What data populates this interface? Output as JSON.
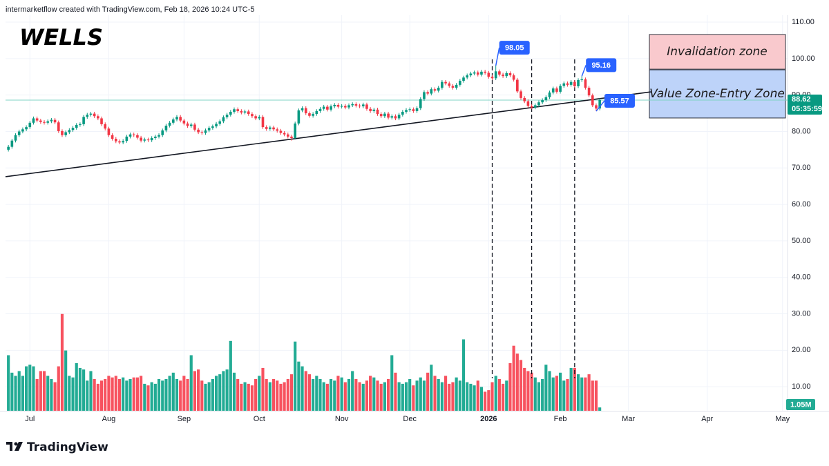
{
  "chart_data": {
    "type": "candlestick",
    "title": "WELLS",
    "watermark": "intermarketflow created with TradingView.com, Feb 18, 2026 10:24 UTC-5",
    "brand": "TradingView",
    "countdown": "05:35:59",
    "up_color": "#089981",
    "down_color": "#f23645",
    "grid": true,
    "xlim": [
      -0.8,
      217.4
    ],
    "xticks": [
      {
        "value": 6,
        "label": "Jul"
      },
      {
        "value": 28,
        "label": "Aug"
      },
      {
        "value": 49,
        "label": "Sep"
      },
      {
        "value": 70,
        "label": "Oct"
      },
      {
        "value": 93,
        "label": "Nov"
      },
      {
        "value": 112,
        "label": "Dec"
      },
      {
        "value": 134,
        "label": "2026"
      },
      {
        "value": 154,
        "label": "Feb"
      },
      {
        "value": 173,
        "label": "Mar"
      },
      {
        "value": 195,
        "label": "Apr"
      },
      {
        "value": 216,
        "label": "May"
      }
    ],
    "ylim": [
      3.4,
      111.9
    ],
    "yticks": [
      {
        "value": 10,
        "label": "10.00"
      },
      {
        "value": 20,
        "label": "20.00"
      },
      {
        "value": 30,
        "label": "30.00"
      },
      {
        "value": 40,
        "label": "40.00"
      },
      {
        "value": 50,
        "label": "50.00"
      },
      {
        "value": 60,
        "label": "60.00"
      },
      {
        "value": 70,
        "label": "70.00"
      },
      {
        "value": 80,
        "label": "80.00"
      },
      {
        "value": 90,
        "label": "90.00"
      },
      {
        "value": 100,
        "label": "100.00"
      },
      {
        "value": 110,
        "label": "110.00"
      }
    ],
    "open": [
      75.0,
      75.8,
      77.5,
      79.0,
      80.0,
      80.6,
      81.2,
      82.4,
      83.6,
      83.0,
      82.6,
      82.4,
      82.8,
      83.2,
      82.5,
      80.1,
      79.0,
      79.8,
      80.4,
      81.0,
      81.8,
      82.0,
      84.0,
      84.6,
      84.9,
      84.2,
      83.6,
      82.0,
      80.8,
      79.0,
      78.0,
      77.3,
      77.0,
      77.4,
      78.6,
      79.2,
      79.0,
      78.3,
      77.5,
      77.8,
      77.6,
      78.2,
      78.6,
      79.0,
      80.3,
      81.6,
      82.4,
      83.3,
      84.0,
      83.0,
      82.2,
      81.5,
      81.9,
      80.5,
      79.8,
      79.6,
      80.3,
      81.0,
      81.4,
      82.1,
      82.8,
      83.9,
      84.6,
      85.4,
      86.1,
      85.6,
      85.2,
      85.5,
      84.8,
      84.2,
      83.6,
      84.0,
      81.2,
      80.7,
      81.1,
      80.6,
      80.2,
      79.6,
      79.2,
      78.6,
      78.2,
      82.2,
      85.8,
      86.4,
      85.0,
      84.3,
      84.8,
      85.6,
      86.2,
      86.8,
      86.0,
      86.9,
      87.3,
      86.8,
      87.0,
      86.6,
      87.2,
      87.5,
      87.1,
      86.9,
      87.4,
      86.2,
      85.6,
      86.0,
      84.8,
      84.2,
      84.9,
      83.8,
      84.2,
      83.6,
      84.6,
      85.4,
      85.9,
      86.1,
      85.6,
      86.4,
      88.9,
      90.8,
      90.4,
      91.6,
      91.2,
      92.0,
      93.6,
      93.2,
      92.5,
      92.0,
      92.8,
      93.9,
      94.8,
      95.4,
      95.9,
      96.2,
      95.6,
      96.4,
      96.1,
      95.0,
      94.6,
      96.5,
      95.6,
      95.2,
      96.0,
      95.4,
      94.2,
      91.0,
      89.2,
      88.3,
      87.0,
      86.6,
      87.2,
      88.0,
      88.6,
      89.4,
      90.7,
      91.8,
      90.9,
      92.5,
      93.2,
      92.8,
      93.6,
      92.4,
      94.1,
      94.3,
      92.0,
      89.9,
      87.2,
      86.3
    ],
    "high": [
      76.3,
      78.0,
      79.5,
      80.5,
      81.1,
      81.7,
      82.9,
      84.1,
      84.1,
      83.5,
      83.1,
      83.3,
      83.7,
      83.7,
      83.0,
      80.6,
      80.3,
      80.9,
      81.5,
      82.3,
      82.5,
      84.5,
      85.1,
      85.4,
      85.4,
      84.7,
      84.1,
      82.5,
      81.3,
      79.5,
      78.5,
      77.8,
      77.9,
      79.1,
      79.7,
      79.7,
      79.5,
      78.8,
      78.3,
      78.3,
      78.7,
      79.1,
      79.5,
      80.8,
      82.1,
      82.9,
      83.8,
      84.5,
      84.5,
      83.5,
      82.7,
      82.4,
      82.4,
      81.0,
      80.3,
      80.8,
      81.5,
      81.9,
      82.6,
      83.3,
      84.4,
      85.1,
      85.9,
      86.6,
      86.6,
      86.1,
      86.0,
      86.0,
      85.3,
      84.7,
      84.5,
      84.5,
      81.7,
      81.6,
      81.6,
      81.1,
      80.7,
      80.1,
      79.7,
      79.1,
      82.7,
      86.3,
      86.9,
      86.9,
      85.5,
      85.3,
      86.1,
      86.7,
      87.3,
      87.3,
      87.4,
      87.8,
      87.8,
      87.5,
      87.5,
      87.7,
      88.0,
      88.0,
      87.6,
      87.9,
      87.9,
      86.7,
      86.5,
      86.5,
      85.3,
      85.4,
      85.4,
      84.7,
      84.7,
      85.1,
      85.9,
      86.4,
      86.6,
      86.6,
      86.9,
      89.4,
      91.3,
      91.3,
      92.1,
      92.1,
      92.5,
      94.1,
      94.1,
      93.7,
      93.0,
      93.3,
      94.4,
      95.3,
      95.9,
      96.4,
      96.7,
      96.7,
      96.9,
      96.9,
      96.6,
      95.5,
      98.05,
      97.0,
      96.1,
      96.5,
      96.5,
      95.9,
      94.7,
      91.5,
      89.7,
      88.8,
      87.5,
      87.7,
      88.5,
      89.1,
      89.9,
      91.2,
      92.3,
      92.3,
      93.0,
      93.7,
      93.7,
      94.1,
      94.1,
      94.6,
      95.16,
      94.8,
      92.5,
      90.4,
      87.7,
      89.1
    ],
    "low": [
      74.5,
      75.3,
      77.0,
      78.5,
      79.5,
      80.1,
      80.7,
      81.9,
      82.5,
      82.1,
      81.9,
      81.9,
      82.3,
      82.0,
      79.6,
      78.5,
      78.5,
      79.3,
      79.9,
      80.5,
      81.3,
      81.5,
      83.5,
      84.1,
      83.7,
      83.1,
      81.5,
      80.3,
      78.5,
      77.5,
      76.8,
      76.5,
      76.5,
      76.9,
      78.1,
      78.5,
      77.8,
      77.0,
      77.0,
      77.1,
      77.1,
      77.7,
      78.1,
      78.5,
      79.8,
      81.1,
      81.9,
      82.8,
      82.5,
      81.7,
      81.0,
      81.0,
      80.0,
      79.3,
      79.1,
      79.1,
      79.8,
      80.5,
      80.9,
      81.6,
      82.3,
      83.4,
      84.1,
      84.9,
      85.1,
      84.7,
      84.7,
      84.3,
      83.7,
      83.1,
      83.1,
      80.7,
      80.2,
      80.2,
      80.1,
      79.7,
      79.1,
      78.7,
      78.1,
      77.5,
      77.8,
      81.7,
      85.3,
      84.5,
      83.8,
      83.8,
      84.3,
      85.1,
      85.7,
      85.5,
      85.5,
      86.4,
      86.3,
      86.3,
      86.1,
      86.1,
      86.7,
      86.6,
      86.4,
      86.4,
      85.7,
      85.1,
      85.1,
      84.3,
      83.7,
      83.7,
      83.3,
      83.3,
      83.1,
      83.1,
      84.1,
      84.9,
      85.4,
      85.1,
      85.1,
      85.9,
      88.4,
      89.9,
      89.9,
      90.7,
      90.7,
      91.5,
      92.7,
      92.0,
      91.5,
      91.5,
      92.3,
      93.4,
      94.3,
      94.9,
      95.4,
      95.1,
      95.1,
      95.6,
      94.5,
      94.1,
      94.1,
      95.1,
      94.7,
      94.7,
      94.9,
      93.7,
      90.5,
      88.7,
      87.8,
      86.5,
      86.1,
      86.1,
      86.7,
      87.5,
      88.1,
      88.9,
      90.2,
      90.4,
      90.4,
      92.0,
      92.3,
      92.3,
      91.9,
      91.9,
      93.6,
      91.5,
      89.4,
      86.7,
      85.57,
      85.8
    ],
    "close": [
      75.8,
      77.5,
      79.0,
      80.0,
      80.6,
      81.2,
      82.4,
      83.6,
      83.0,
      82.6,
      82.4,
      82.8,
      83.2,
      82.5,
      80.1,
      79.0,
      79.8,
      80.4,
      81.0,
      81.8,
      82.0,
      84.0,
      84.6,
      84.9,
      84.2,
      83.6,
      82.0,
      80.8,
      79.0,
      78.0,
      77.3,
      77.0,
      77.4,
      78.6,
      79.2,
      79.0,
      78.3,
      77.5,
      77.8,
      77.6,
      78.2,
      78.6,
      79.0,
      80.3,
      81.6,
      82.4,
      83.3,
      84.0,
      83.0,
      82.2,
      81.5,
      81.9,
      80.5,
      79.8,
      79.6,
      80.3,
      81.0,
      81.4,
      82.1,
      82.8,
      83.9,
      84.6,
      85.4,
      86.1,
      85.6,
      85.2,
      85.5,
      84.8,
      84.2,
      83.6,
      84.0,
      81.2,
      80.7,
      81.1,
      80.6,
      80.2,
      79.6,
      79.2,
      78.6,
      78.2,
      82.2,
      85.8,
      86.4,
      85.0,
      84.3,
      84.8,
      85.6,
      86.2,
      86.8,
      86.0,
      86.9,
      87.3,
      86.8,
      87.0,
      86.6,
      87.2,
      87.5,
      87.1,
      86.9,
      87.4,
      86.2,
      85.6,
      86.0,
      84.8,
      84.2,
      84.9,
      83.8,
      84.2,
      83.6,
      84.6,
      85.4,
      85.9,
      86.1,
      85.6,
      86.4,
      88.9,
      90.8,
      90.4,
      91.6,
      91.2,
      92.0,
      93.6,
      93.2,
      92.5,
      92.0,
      92.8,
      93.9,
      94.8,
      95.4,
      95.9,
      96.2,
      95.6,
      96.4,
      96.1,
      95.0,
      94.6,
      96.5,
      95.6,
      95.2,
      96.0,
      95.4,
      94.2,
      91.0,
      89.2,
      88.3,
      87.0,
      86.6,
      87.2,
      88.0,
      88.6,
      89.4,
      90.7,
      91.8,
      90.9,
      92.5,
      93.2,
      92.8,
      93.6,
      92.4,
      94.1,
      94.3,
      92.0,
      89.9,
      87.2,
      86.3,
      88.62
    ],
    "volume": {
      "up_color": "#22ab94",
      "down_color": "#f7525f",
      "ylim": [
        0,
        124.6
      ],
      "last_label": "1.05M",
      "values": [
        17.5,
        12.0,
        11.0,
        12.5,
        11.0,
        14.0,
        14.5,
        14.0,
        10.0,
        12.5,
        12.5,
        11.0,
        10.0,
        9.0,
        14.0,
        30.5,
        19.0,
        11.0,
        10.5,
        15.0,
        13.5,
        13.0,
        9.5,
        12.5,
        10.0,
        8.5,
        9.5,
        10.0,
        11.0,
        10.5,
        11.0,
        10.0,
        10.5,
        9.5,
        10.0,
        10.5,
        10.5,
        11.0,
        8.5,
        8.0,
        9.0,
        8.5,
        10.0,
        9.5,
        10.0,
        11.0,
        12.0,
        10.0,
        9.5,
        11.0,
        10.0,
        17.5,
        12.5,
        13.0,
        9.5,
        8.5,
        9.0,
        10.0,
        11.0,
        11.5,
        12.5,
        13.0,
        22.0,
        12.0,
        10.0,
        8.5,
        9.0,
        8.5,
        8.0,
        10.0,
        11.0,
        13.5,
        10.0,
        9.0,
        10.0,
        9.5,
        8.5,
        9.0,
        10.0,
        11.5,
        21.8,
        15.5,
        14.0,
        12.5,
        11.5,
        10.0,
        11.0,
        10.0,
        9.0,
        8.5,
        10.0,
        9.5,
        11.0,
        10.5,
        9.0,
        10.0,
        12.5,
        10.0,
        9.0,
        8.5,
        9.5,
        11.0,
        10.5,
        9.5,
        8.5,
        9.0,
        10.0,
        17.5,
        12.0,
        9.0,
        8.5,
        9.0,
        10.0,
        8.0,
        9.5,
        10.5,
        9.5,
        12.0,
        14.5,
        11.0,
        10.0,
        9.0,
        11.0,
        8.5,
        9.0,
        10.5,
        9.5,
        22.5,
        9.0,
        8.5,
        8.0,
        9.5,
        7.5,
        6.0,
        6.5,
        9.0,
        11.0,
        10.0,
        8.5,
        9.5,
        15.0,
        20.5,
        18.0,
        16.0,
        13.5,
        12.5,
        12.0,
        10.5,
        9.0,
        10.0,
        14.5,
        12.5,
        10.5,
        11.0,
        12.0,
        9.5,
        10.0,
        13.5,
        13.5,
        11.5,
        10.5,
        10.5,
        11.5,
        9.5,
        9.5,
        1.05
      ]
    },
    "trendline": {
      "x": [
        -0.8,
        179.5
      ],
      "y": [
        67.6,
        90.9
      ]
    },
    "vlines": [
      135,
      146,
      158
    ],
    "zones": [
      {
        "label": "Invalidation zone",
        "range": [
          97.1,
          106.6
        ],
        "color": "#f9c9cd"
      },
      {
        "label": "Value Zone-Entry Zone",
        "range": [
          83.7,
          96.9
        ],
        "color": "#bdd3f9"
      }
    ]
  }
}
